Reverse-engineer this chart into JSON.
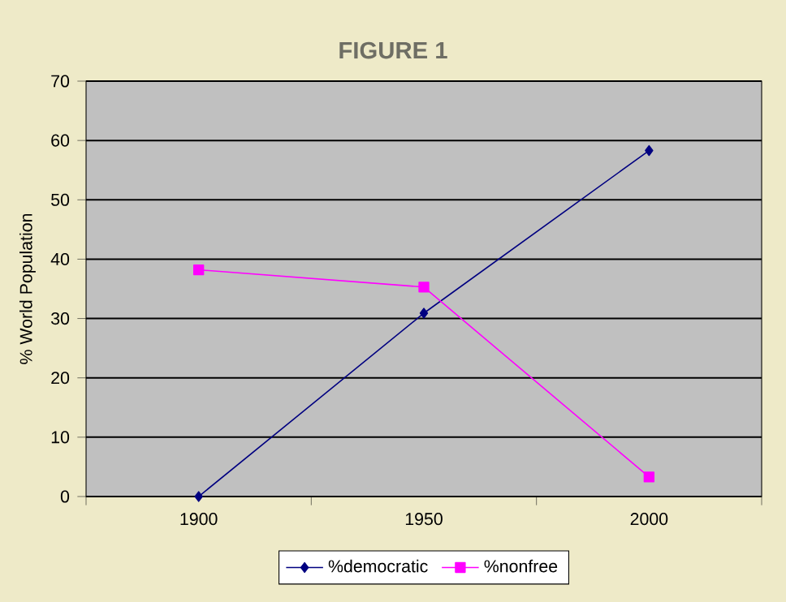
{
  "chart_data": {
    "type": "line",
    "title": "FIGURE 1",
    "ylabel": "% World Population",
    "categories": [
      "1900",
      "1950",
      "2000"
    ],
    "series": [
      {
        "name": "%democratic",
        "color": "#000080",
        "marker": "diamond",
        "values": [
          0,
          30.9,
          58.3
        ]
      },
      {
        "name": "%nonfree",
        "color": "#ff00ff",
        "marker": "square",
        "values": [
          38.2,
          35.3,
          3.3
        ]
      }
    ],
    "ylim": [
      0,
      70
    ],
    "yticks": [
      0,
      10,
      20,
      30,
      40,
      50,
      60,
      70
    ],
    "grid": "y",
    "legend": "bottom",
    "line_style": "solid"
  }
}
